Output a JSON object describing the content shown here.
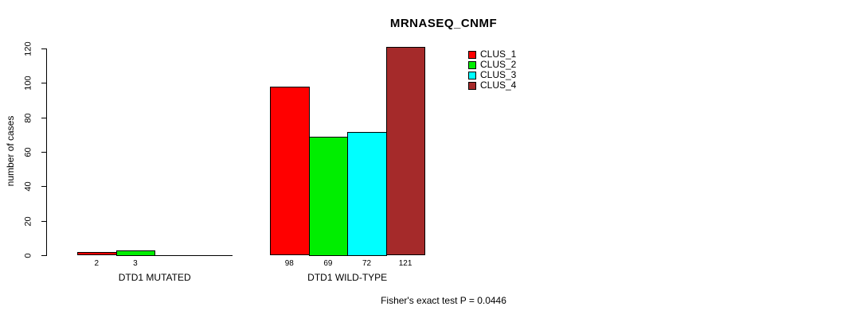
{
  "chart_data": {
    "type": "bar",
    "title": "MRNASEQ_CNMF",
    "xlabel": "",
    "ylabel": "number of cases",
    "ylim": [
      0,
      120
    ],
    "yticks": [
      0,
      20,
      40,
      60,
      80,
      100,
      120
    ],
    "grid": false,
    "legend_position": "top-right",
    "groups": [
      {
        "label": "DTD1 MUTATED",
        "values": [
          2,
          3,
          0,
          0
        ]
      },
      {
        "label": "DTD1 WILD-TYPE",
        "values": [
          98,
          69,
          72,
          121
        ]
      }
    ],
    "series": [
      {
        "name": "CLUS_1",
        "color": "#ff0000",
        "values": [
          2,
          98
        ]
      },
      {
        "name": "CLUS_2",
        "color": "#00ee00",
        "values": [
          3,
          69
        ]
      },
      {
        "name": "CLUS_3",
        "color": "#00ffff",
        "values": [
          0,
          72
        ]
      },
      {
        "name": "CLUS_4",
        "color": "#a52a2a",
        "values": [
          0,
          121
        ]
      }
    ],
    "legend": [
      {
        "label": "CLUS_1",
        "color": "#ff0000"
      },
      {
        "label": "CLUS_2",
        "color": "#00ee00"
      },
      {
        "label": "CLUS_3",
        "color": "#00ffff"
      },
      {
        "label": "CLUS_4",
        "color": "#a52a2a"
      }
    ],
    "annotation": "Fisher's exact test P = 0.0446"
  },
  "colors": {
    "background": "#ffffff",
    "axis": "#000000",
    "text": "#000000"
  }
}
